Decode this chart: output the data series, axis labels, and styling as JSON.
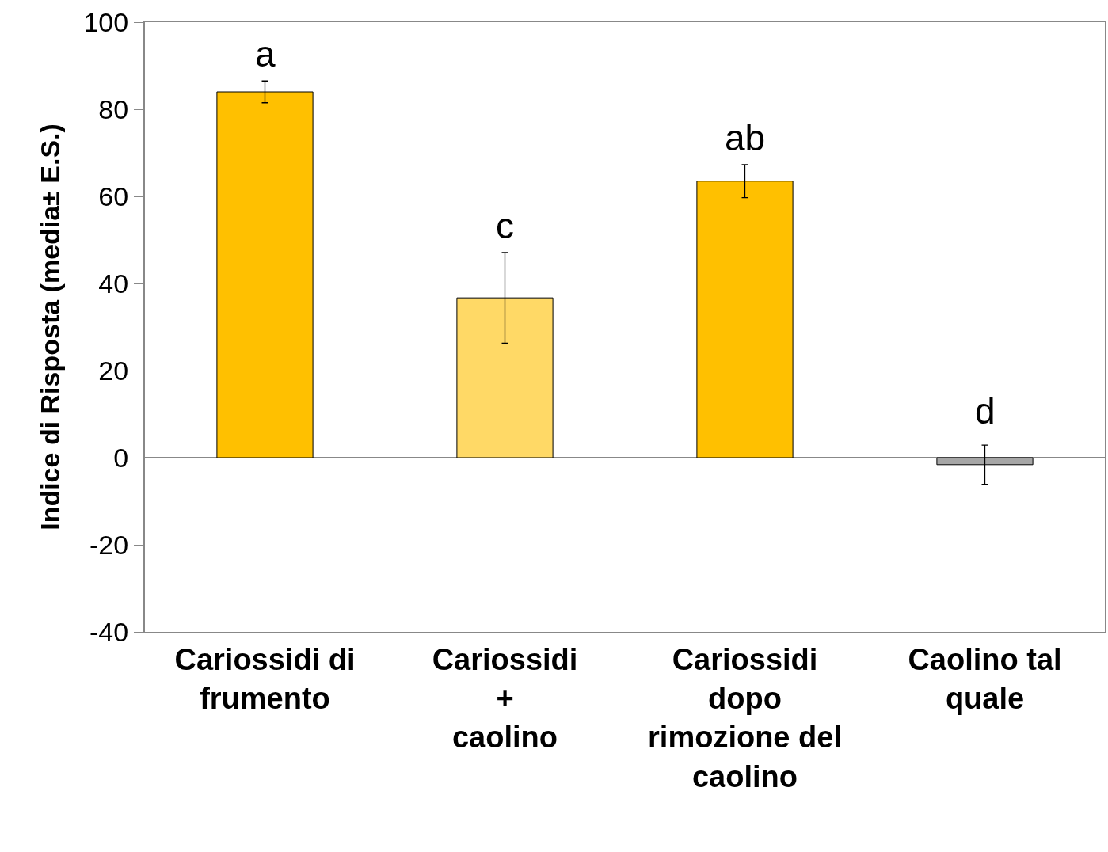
{
  "chart_data": {
    "type": "bar",
    "ylabel": "Indice di Risposta (media± E.S.)",
    "categories": [
      "Cariossidi di\nfrumento",
      "Cariossidi\n+\ncaolino",
      "Cariossidi\ndopo\nrimozione del\ncaolino",
      "Caolino tal\nquale"
    ],
    "values": [
      84,
      36.7,
      63.5,
      -1.6
    ],
    "colors": [
      "#ffc000",
      "#ffd966",
      "#ffc000",
      "#a6a6a6"
    ],
    "errors": [
      2.5,
      10.4,
      3.8,
      4.5
    ],
    "annotations": [
      "a",
      "c",
      "ab",
      "d"
    ],
    "ylim": [
      -40,
      100
    ],
    "yticks": [
      -40,
      -20,
      0,
      20,
      40,
      60,
      80,
      100
    ],
    "grid": false,
    "ref_lines": [
      {
        "axis": "y",
        "value": 0,
        "color": "#888888"
      }
    ]
  }
}
